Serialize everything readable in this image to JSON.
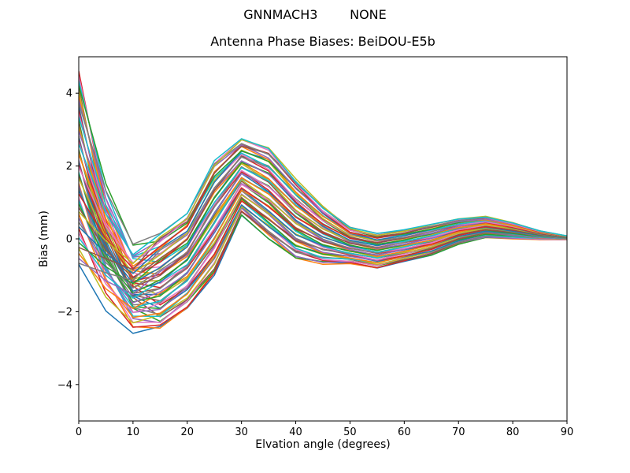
{
  "figure": {
    "suptitle": "GNNMACH3        NONE",
    "background": "#ffffff"
  },
  "chart_data": {
    "type": "line",
    "title": "Antenna Phase Biases: BeiDOU-E5b",
    "xlabel": "Elvation angle (degrees)",
    "ylabel": "Bias (mm)",
    "xlim": [
      0,
      90
    ],
    "ylim": [
      -5,
      5
    ],
    "x_ticks": [
      0,
      10,
      20,
      30,
      40,
      50,
      60,
      70,
      80,
      90
    ],
    "x_tick_labels": [
      "0",
      "10",
      "20",
      "30",
      "40",
      "50",
      "60",
      "70",
      "80",
      "90"
    ],
    "y_ticks": [
      -4,
      -2,
      0,
      2,
      4
    ],
    "y_tick_labels": [
      "−4",
      "−2",
      "0",
      "2",
      "4"
    ],
    "grid": false,
    "legend": "none",
    "axis_color": "#000000",
    "n_series": 60,
    "series_description": "Approximately 60 unlabeled overlapping phase-bias curves (matplotlib default color cycle); individual curves are not labeled in the figure, so the per-elevation min/max envelope of the bundle is recorded.",
    "x": [
      0,
      5,
      10,
      15,
      20,
      25,
      30,
      35,
      40,
      45,
      50,
      55,
      60,
      65,
      70,
      75,
      80,
      85,
      90
    ],
    "envelope_top": [
      4.65,
      1.8,
      0.0,
      0.15,
      0.7,
      2.15,
      2.75,
      2.5,
      1.65,
      0.9,
      0.32,
      0.15,
      0.25,
      0.4,
      0.55,
      0.62,
      0.45,
      0.22,
      0.08
    ],
    "envelope_bottom": [
      -0.7,
      -2.1,
      -2.7,
      -2.45,
      -1.9,
      -1.0,
      0.65,
      0.0,
      -0.55,
      -0.7,
      -0.68,
      -0.8,
      -0.62,
      -0.45,
      -0.15,
      0.03,
      0.0,
      -0.02,
      -0.02
    ],
    "palette": [
      "#1f77b4",
      "#ff7f0e",
      "#2ca02c",
      "#d62728",
      "#9467bd",
      "#8c564b",
      "#e377c2",
      "#7f7f7f",
      "#bcbd22",
      "#17becf"
    ]
  }
}
